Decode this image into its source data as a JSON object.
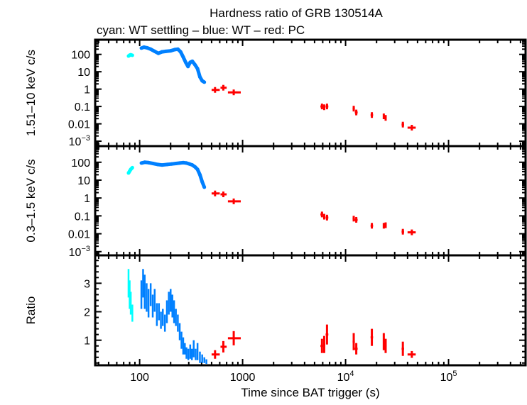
{
  "chart_data": {
    "type": "scatter",
    "title": "Hardness ratio of GRB 130514A",
    "subtitle": "cyan: WT settling – blue: WT – red: PC",
    "xlabel": "Time since BAT trigger (s)",
    "x_scale": "log",
    "xlim": [
      37,
      560000
    ],
    "x_ticks": [
      {
        "value": 100,
        "label": "100"
      },
      {
        "value": 1000,
        "label": "1000"
      },
      {
        "value": 10000,
        "label": "10",
        "sup": "4"
      },
      {
        "value": 100000,
        "label": "10",
        "sup": "5"
      }
    ],
    "colors": {
      "WT settling": "#00ffff",
      "WT": "#0080ff",
      "PC": "#ff0000"
    },
    "panels": [
      {
        "ylabel": "1.51–10 keV c/s",
        "y_scale": "log",
        "ylim": [
          0.00052,
          700
        ],
        "y_ticks": [
          {
            "value": 100,
            "label": "100"
          },
          {
            "value": 10,
            "label": "10"
          },
          {
            "value": 1,
            "label": "1"
          },
          {
            "value": 0.1,
            "label": "0.1"
          },
          {
            "value": 0.01,
            "label": "0.01"
          },
          {
            "value": 0.001,
            "label": "10",
            "sup": "−3"
          }
        ],
        "series": [
          {
            "name": "WT settling",
            "points": [
              [
                78,
                80
              ],
              [
                80,
                90
              ],
              [
                82,
                95
              ],
              [
                85,
                88
              ]
            ]
          },
          {
            "name": "WT",
            "points": [
              [
                104,
                230
              ],
              [
                110,
                260
              ],
              [
                118,
                240
              ],
              [
                128,
                200
              ],
              [
                140,
                150
              ],
              [
                152,
                115
              ],
              [
                165,
                140
              ],
              [
                180,
                150
              ],
              [
                200,
                160
              ],
              [
                220,
                190
              ],
              [
                235,
                200
              ],
              [
                250,
                140
              ],
              [
                265,
                70
              ],
              [
                280,
                35
              ],
              [
                295,
                20
              ],
              [
                310,
                35
              ],
              [
                325,
                40
              ],
              [
                345,
                25
              ],
              [
                365,
                15
              ],
              [
                385,
                5
              ],
              [
                405,
                3
              ],
              [
                425,
                2.5
              ]
            ]
          },
          {
            "name": "PC",
            "points": [
              [
                540,
                0.9,
                500,
                600
              ],
              [
                650,
                1.2,
                610,
                700
              ],
              [
                820,
                0.65,
                720,
                960
              ],
              [
                5900,
                0.1,
                5700,
                6050
              ],
              [
                6200,
                0.09,
                6050,
                6350
              ],
              [
                6600,
                0.1,
                6400,
                6800
              ],
              [
                12000,
                0.075,
                11700,
                12300
              ],
              [
                12700,
                0.045,
                12300,
                13100
              ],
              [
                18000,
                0.032,
                17500,
                18500
              ],
              [
                23500,
                0.027,
                23000,
                24000
              ],
              [
                24500,
                0.022,
                24000,
                25000
              ],
              [
                36000,
                0.009,
                35000,
                37000
              ],
              [
                44000,
                0.006,
                40000,
                48000
              ]
            ]
          }
        ]
      },
      {
        "ylabel": "0.3–1.5 keV c/s",
        "y_scale": "log",
        "ylim": [
          0.00062,
          800
        ],
        "y_ticks": [
          {
            "value": 100,
            "label": "100"
          },
          {
            "value": 10,
            "label": "10"
          },
          {
            "value": 1,
            "label": "1"
          },
          {
            "value": 0.1,
            "label": "0.1"
          },
          {
            "value": 0.01,
            "label": "0.01"
          },
          {
            "value": 0.001,
            "label": "10",
            "sup": "−3"
          }
        ],
        "series": [
          {
            "name": "WT settling",
            "points": [
              [
                78,
                25
              ],
              [
                80,
                32
              ],
              [
                82,
                40
              ],
              [
                85,
                50
              ]
            ]
          },
          {
            "name": "WT",
            "points": [
              [
                104,
                90
              ],
              [
                112,
                100
              ],
              [
                122,
                95
              ],
              [
                135,
                85
              ],
              [
                150,
                75
              ],
              [
                165,
                70
              ],
              [
                185,
                75
              ],
              [
                205,
                80
              ],
              [
                225,
                85
              ],
              [
                245,
                90
              ],
              [
                265,
                95
              ],
              [
                285,
                90
              ],
              [
                305,
                80
              ],
              [
                325,
                70
              ],
              [
                345,
                55
              ],
              [
                365,
                40
              ],
              [
                385,
                20
              ],
              [
                405,
                8
              ],
              [
                425,
                4
              ]
            ]
          },
          {
            "name": "PC",
            "points": [
              [
                540,
                1.8,
                500,
                600
              ],
              [
                650,
                1.6,
                610,
                700
              ],
              [
                820,
                0.65,
                720,
                960
              ],
              [
                5900,
                0.12,
                5700,
                6050
              ],
              [
                6200,
                0.09,
                6050,
                6350
              ],
              [
                6600,
                0.08,
                6400,
                6800
              ],
              [
                12000,
                0.07,
                11700,
                12300
              ],
              [
                12700,
                0.06,
                12300,
                13100
              ],
              [
                18000,
                0.028,
                17500,
                18500
              ],
              [
                23500,
                0.028,
                23000,
                24000
              ],
              [
                24500,
                0.03,
                24000,
                25000
              ],
              [
                36000,
                0.013,
                35000,
                37000
              ],
              [
                44000,
                0.012,
                40000,
                48000
              ]
            ]
          }
        ]
      },
      {
        "ylabel": "Ratio",
        "y_scale": "linear",
        "ylim": [
          0.12,
          3.98
        ],
        "y_ticks": [
          {
            "value": 3,
            "label": "3"
          },
          {
            "value": 2,
            "label": "2"
          },
          {
            "value": 1,
            "label": "1"
          }
        ],
        "series": [
          {
            "name": "WT settling",
            "points": [
              [
                78,
                3.0,
                0.5
              ],
              [
                80,
                2.6,
                0.5
              ],
              [
                82,
                2.3,
                0.4
              ],
              [
                85,
                1.95,
                0.3
              ]
            ]
          },
          {
            "name": "WT",
            "points": [
              [
                104,
                2.6,
                0.5
              ],
              [
                108,
                3.0,
                0.5
              ],
              [
                112,
                2.7,
                0.6
              ],
              [
                117,
                2.5,
                0.5
              ],
              [
                122,
                2.3,
                0.5
              ],
              [
                128,
                2.6,
                0.4
              ],
              [
                134,
                2.2,
                0.4
              ],
              [
                140,
                2.4,
                0.4
              ],
              [
                147,
                1.9,
                0.4
              ],
              [
                154,
                2.0,
                0.3
              ],
              [
                161,
                1.7,
                0.3
              ],
              [
                168,
                1.8,
                0.3
              ],
              [
                176,
                1.6,
                0.3
              ],
              [
                184,
                2.0,
                0.4
              ],
              [
                192,
                2.3,
                0.4
              ],
              [
                200,
                2.4,
                0.4
              ],
              [
                208,
                2.2,
                0.4
              ],
              [
                216,
                2.0,
                0.4
              ],
              [
                225,
                1.8,
                0.3
              ],
              [
                235,
                1.6,
                0.3
              ],
              [
                245,
                1.3,
                0.3
              ],
              [
                255,
                1.0,
                0.3
              ],
              [
                265,
                0.8,
                0.3
              ],
              [
                275,
                0.7,
                0.2
              ],
              [
                285,
                0.55,
                0.2
              ],
              [
                297,
                0.5,
                0.2
              ],
              [
                310,
                0.6,
                0.25
              ],
              [
                322,
                0.5,
                0.2
              ],
              [
                335,
                0.7,
                0.3
              ],
              [
                350,
                0.5,
                0.2
              ],
              [
                365,
                0.6,
                0.3
              ],
              [
                385,
                0.4,
                0.2
              ],
              [
                405,
                0.35,
                0.15
              ],
              [
                425,
                0.3,
                0.1
              ],
              [
                445,
                0.25,
                0.08
              ]
            ]
          },
          {
            "name": "PC",
            "points": [
              [
                540,
                0.5,
                0.15,
                500,
                600
              ],
              [
                650,
                0.77,
                0.2,
                610,
                700
              ],
              [
                820,
                1.07,
                0.25,
                720,
                960
              ],
              [
                5900,
                0.8,
                0.25,
                5700,
                6050
              ],
              [
                6200,
                0.85,
                0.3,
                6050,
                6350
              ],
              [
                6600,
                1.2,
                0.35,
                6400,
                6800
              ],
              [
                12000,
                0.95,
                0.3,
                11700,
                12300
              ],
              [
                12700,
                0.7,
                0.2,
                12300,
                13100
              ],
              [
                18000,
                1.1,
                0.3,
                17500,
                18500
              ],
              [
                23500,
                0.95,
                0.3,
                23000,
                24000
              ],
              [
                24500,
                0.8,
                0.25,
                24000,
                25000
              ],
              [
                36000,
                0.7,
                0.25,
                35000,
                37000
              ],
              [
                44000,
                0.5,
                0.12,
                40000,
                48000
              ]
            ]
          }
        ]
      }
    ]
  }
}
